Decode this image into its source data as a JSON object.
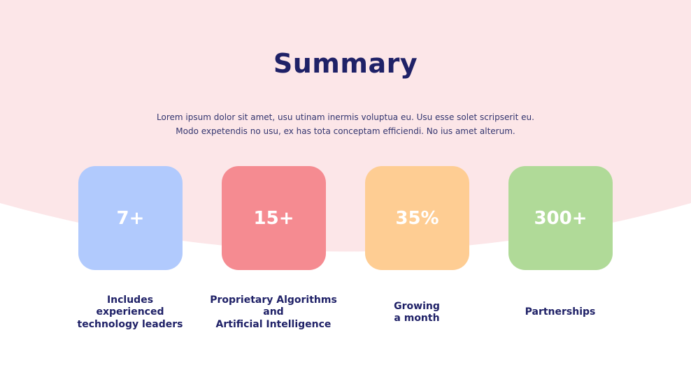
{
  "slide": {
    "title": "Summary",
    "description_lines": [
      "Lorem ipsum dolor sit amet, usu utinam inermis voluptua eu. Usu esse solet scripserit eu.",
      "Modo expetendis no usu, ex has tota conceptam efficiendi. No ius amet alterum."
    ]
  },
  "stats": [
    {
      "value": "7+",
      "label": "Includes\nexperienced\ntechnology leaders",
      "color": "#b1cafd"
    },
    {
      "value": "15+",
      "label": "Proprietary Algorithms\nand\nArtificial Intelligence",
      "color": "#f58b91"
    },
    {
      "value": "35%",
      "label": "Growing\na month",
      "color": "#fecd93"
    },
    {
      "value": "300+",
      "label": "Partnerships",
      "color": "#b0da98"
    }
  ],
  "theme": {
    "background_top": "#fce6e8",
    "background_bottom": "#ffffff",
    "text_dark": "#1f2167"
  }
}
